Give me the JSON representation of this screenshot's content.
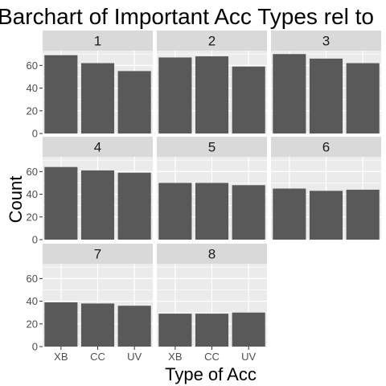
{
  "chart_data": {
    "type": "bar",
    "title": "Barchart of Important Acc Types rel to",
    "xlabel": "Type of Acc",
    "ylabel": "Count",
    "categories": [
      "XB",
      "CC",
      "UV"
    ],
    "ylim": [
      0,
      73
    ],
    "yticks": [
      "0",
      "20",
      "40",
      "60"
    ],
    "grid": true,
    "panels": [
      {
        "label": "1",
        "values": [
          69,
          62,
          55
        ]
      },
      {
        "label": "2",
        "values": [
          67,
          68,
          59
        ]
      },
      {
        "label": "3",
        "values": [
          70,
          66,
          62
        ]
      },
      {
        "label": "4",
        "values": [
          64,
          61,
          59
        ]
      },
      {
        "label": "5",
        "values": [
          50,
          50,
          48
        ]
      },
      {
        "label": "6",
        "values": [
          45,
          43,
          44
        ]
      },
      {
        "label": "7",
        "values": [
          39,
          38,
          36
        ]
      },
      {
        "label": "8",
        "values": [
          29,
          29,
          30
        ]
      }
    ],
    "colors": {
      "bar": "#595959",
      "panel_bg": "#EBEBEB",
      "strip_bg": "#D9D9D9",
      "grid": "#FFFFFF"
    }
  }
}
